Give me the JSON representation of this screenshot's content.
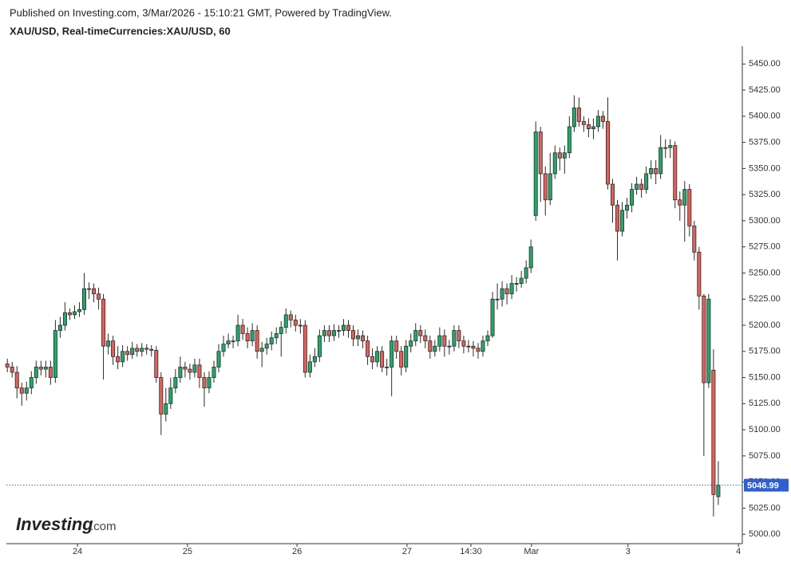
{
  "chart_data": {
    "type": "candlestick",
    "subtitle": "Published on Investing.com, 3/Mar/2026 - 15:10:21 GMT, Powered by TradingView.",
    "title": "XAU/USD, Real-timeCurrencies:XAU/USD, 60",
    "logo": {
      "name": "Investing",
      "suffix": ".com"
    },
    "colors": {
      "up": "#22a86a",
      "down": "#e0605a",
      "outline": "#2b2b2b",
      "last_price": "#2f5fd0"
    },
    "open": [
      5163,
      5160,
      5155,
      5140,
      5135,
      5140,
      5150,
      5160,
      5158,
      5160,
      5150,
      5195,
      5200,
      5212,
      5210,
      5213,
      5215,
      5235,
      5235,
      5230,
      5225,
      5180,
      5185,
      5170,
      5165,
      5175,
      5172,
      5178,
      5175,
      5178,
      5177,
      5176,
      5150,
      5115,
      5125,
      5140,
      5150,
      5160,
      5158,
      5155,
      5162,
      5150,
      5140,
      5150,
      5160,
      5175,
      5182,
      5185,
      5185,
      5200,
      5192,
      5185,
      5195,
      5175,
      5178,
      5182,
      5188,
      5192,
      5198,
      5210,
      5205,
      5200,
      5200,
      5155,
      5165,
      5170,
      5190,
      5195,
      5190,
      5195,
      5195,
      5200,
      5195,
      5187,
      5190,
      5185,
      5170,
      5165,
      5175,
      5160,
      5160,
      5185,
      5175,
      5160,
      5180,
      5185,
      5195,
      5190,
      5185,
      5175,
      5180,
      5190,
      5180,
      5180,
      5195,
      5185,
      5180,
      5180,
      5178,
      5175,
      5185,
      5190,
      5225,
      5225,
      5235,
      5230,
      5240,
      5240,
      5245,
      5255,
      5305,
      5385,
      5345,
      5320,
      5345,
      5365,
      5360,
      5365,
      5390,
      5408,
      5395,
      5392,
      5388,
      5390,
      5400,
      5395,
      5335,
      5315,
      5290,
      5310,
      5315,
      5330,
      5335,
      5330,
      5345,
      5350,
      5345,
      5370,
      5370,
      5372,
      5320,
      5315,
      5330,
      5295,
      5270,
      5228,
      5145,
      5157,
      5036
    ],
    "high": [
      5168,
      5165,
      5161,
      5145,
      5146,
      5156,
      5166,
      5166,
      5166,
      5166,
      5205,
      5208,
      5222,
      5216,
      5219,
      5222,
      5250,
      5241,
      5240,
      5236,
      5230,
      5192,
      5190,
      5180,
      5181,
      5180,
      5184,
      5182,
      5183,
      5182,
      5181,
      5180,
      5155,
      5140,
      5150,
      5158,
      5170,
      5165,
      5163,
      5168,
      5168,
      5155,
      5156,
      5166,
      5182,
      5190,
      5192,
      5190,
      5210,
      5206,
      5198,
      5202,
      5200,
      5184,
      5188,
      5194,
      5198,
      5204,
      5216,
      5214,
      5210,
      5206,
      5205,
      5172,
      5178,
      5196,
      5200,
      5200,
      5201,
      5200,
      5206,
      5205,
      5200,
      5196,
      5195,
      5190,
      5178,
      5180,
      5180,
      5168,
      5190,
      5190,
      5180,
      5186,
      5192,
      5202,
      5200,
      5196,
      5190,
      5186,
      5198,
      5196,
      5186,
      5200,
      5200,
      5190,
      5186,
      5185,
      5183,
      5190,
      5195,
      5232,
      5240,
      5242,
      5240,
      5248,
      5246,
      5252,
      5262,
      5282,
      5395,
      5390,
      5352,
      5365,
      5372,
      5370,
      5372,
      5400,
      5420,
      5418,
      5400,
      5398,
      5398,
      5406,
      5405,
      5418,
      5340,
      5320,
      5318,
      5322,
      5336,
      5342,
      5340,
      5352,
      5358,
      5358,
      5382,
      5378,
      5378,
      5376,
      5328,
      5338,
      5335,
      5300,
      5275,
      5230,
      5230,
      5177,
      5070
    ],
    "low": [
      5155,
      5150,
      5130,
      5123,
      5128,
      5134,
      5144,
      5152,
      5150,
      5143,
      5145,
      5188,
      5195,
      5205,
      5206,
      5208,
      5210,
      5225,
      5222,
      5215,
      5148,
      5172,
      5162,
      5158,
      5160,
      5166,
      5168,
      5170,
      5170,
      5172,
      5170,
      5145,
      5095,
      5108,
      5120,
      5135,
      5145,
      5150,
      5148,
      5150,
      5140,
      5122,
      5135,
      5145,
      5155,
      5170,
      5178,
      5178,
      5180,
      5186,
      5178,
      5180,
      5168,
      5160,
      5172,
      5176,
      5182,
      5170,
      5192,
      5198,
      5194,
      5192,
      5150,
      5150,
      5160,
      5165,
      5184,
      5184,
      5185,
      5188,
      5190,
      5188,
      5180,
      5180,
      5178,
      5162,
      5158,
      5160,
      5155,
      5152,
      5132,
      5168,
      5152,
      5155,
      5174,
      5180,
      5183,
      5178,
      5168,
      5170,
      5175,
      5170,
      5172,
      5175,
      5178,
      5173,
      5174,
      5170,
      5168,
      5170,
      5180,
      5188,
      5215,
      5218,
      5220,
      5225,
      5232,
      5236,
      5240,
      5250,
      5300,
      5318,
      5305,
      5315,
      5340,
      5348,
      5345,
      5360,
      5385,
      5390,
      5385,
      5380,
      5378,
      5385,
      5388,
      5330,
      5298,
      5262,
      5285,
      5302,
      5308,
      5325,
      5322,
      5326,
      5340,
      5335,
      5340,
      5360,
      5360,
      5312,
      5300,
      5280,
      5285,
      5262,
      5215,
      5075,
      5140,
      5017,
      5028
    ],
    "close": [
      5160,
      5155,
      5140,
      5135,
      5140,
      5150,
      5160,
      5158,
      5160,
      5150,
      5195,
      5200,
      5212,
      5210,
      5213,
      5215,
      5235,
      5235,
      5230,
      5225,
      5180,
      5185,
      5170,
      5165,
      5175,
      5172,
      5178,
      5175,
      5178,
      5177,
      5176,
      5150,
      5115,
      5125,
      5140,
      5150,
      5160,
      5158,
      5155,
      5162,
      5150,
      5140,
      5150,
      5160,
      5175,
      5182,
      5185,
      5185,
      5200,
      5192,
      5185,
      5195,
      5175,
      5178,
      5182,
      5188,
      5192,
      5198,
      5210,
      5205,
      5200,
      5200,
      5155,
      5165,
      5170,
      5190,
      5195,
      5190,
      5195,
      5195,
      5200,
      5195,
      5187,
      5190,
      5185,
      5170,
      5165,
      5175,
      5160,
      5160,
      5185,
      5175,
      5160,
      5180,
      5185,
      5195,
      5190,
      5185,
      5175,
      5180,
      5190,
      5180,
      5180,
      5195,
      5185,
      5180,
      5180,
      5178,
      5175,
      5185,
      5190,
      5225,
      5225,
      5235,
      5230,
      5240,
      5240,
      5245,
      5255,
      5275,
      5385,
      5345,
      5320,
      5345,
      5365,
      5360,
      5365,
      5390,
      5408,
      5395,
      5392,
      5388,
      5390,
      5400,
      5395,
      5335,
      5315,
      5290,
      5310,
      5315,
      5330,
      5335,
      5330,
      5345,
      5350,
      5345,
      5370,
      5370,
      5372,
      5320,
      5315,
      5330,
      5295,
      5270,
      5228,
      5145,
      5225,
      5038,
      5046.99
    ],
    "last_price": 5046.99,
    "xlim": [
      -0.2,
      153
    ],
    "xticks": [
      {
        "value": 14.6,
        "label": "24"
      },
      {
        "value": 37.5,
        "label": "25"
      },
      {
        "value": 60.3,
        "label": "26"
      },
      {
        "value": 83.2,
        "label": "27"
      },
      {
        "value": 96.5,
        "label": "14:30"
      },
      {
        "value": 109.1,
        "label": "Mar"
      },
      {
        "value": 129.2,
        "label": "3"
      },
      {
        "value": 152.2,
        "label": "4"
      }
    ],
    "ylim": [
      4991,
      5467
    ],
    "yticks": [
      {
        "value": 5000,
        "label": "5000.00"
      },
      {
        "value": 5025,
        "label": "5025.00"
      },
      {
        "value": 5050,
        "label": "5050.00"
      },
      {
        "value": 5075,
        "label": "5075.00"
      },
      {
        "value": 5100,
        "label": "5100.00"
      },
      {
        "value": 5125,
        "label": "5125.00"
      },
      {
        "value": 5150,
        "label": "5150.00"
      },
      {
        "value": 5175,
        "label": "5175.00"
      },
      {
        "value": 5200,
        "label": "5200.00"
      },
      {
        "value": 5225,
        "label": "5225.00"
      },
      {
        "value": 5250,
        "label": "5250.00"
      },
      {
        "value": 5275,
        "label": "5275.00"
      },
      {
        "value": 5300,
        "label": "5300.00"
      },
      {
        "value": 5325,
        "label": "5325.00"
      },
      {
        "value": 5350,
        "label": "5350.00"
      },
      {
        "value": 5375,
        "label": "5375.00"
      },
      {
        "value": 5400,
        "label": "5400.00"
      },
      {
        "value": 5425,
        "label": "5425.00"
      },
      {
        "value": 5450,
        "label": "5450.00"
      }
    ]
  }
}
